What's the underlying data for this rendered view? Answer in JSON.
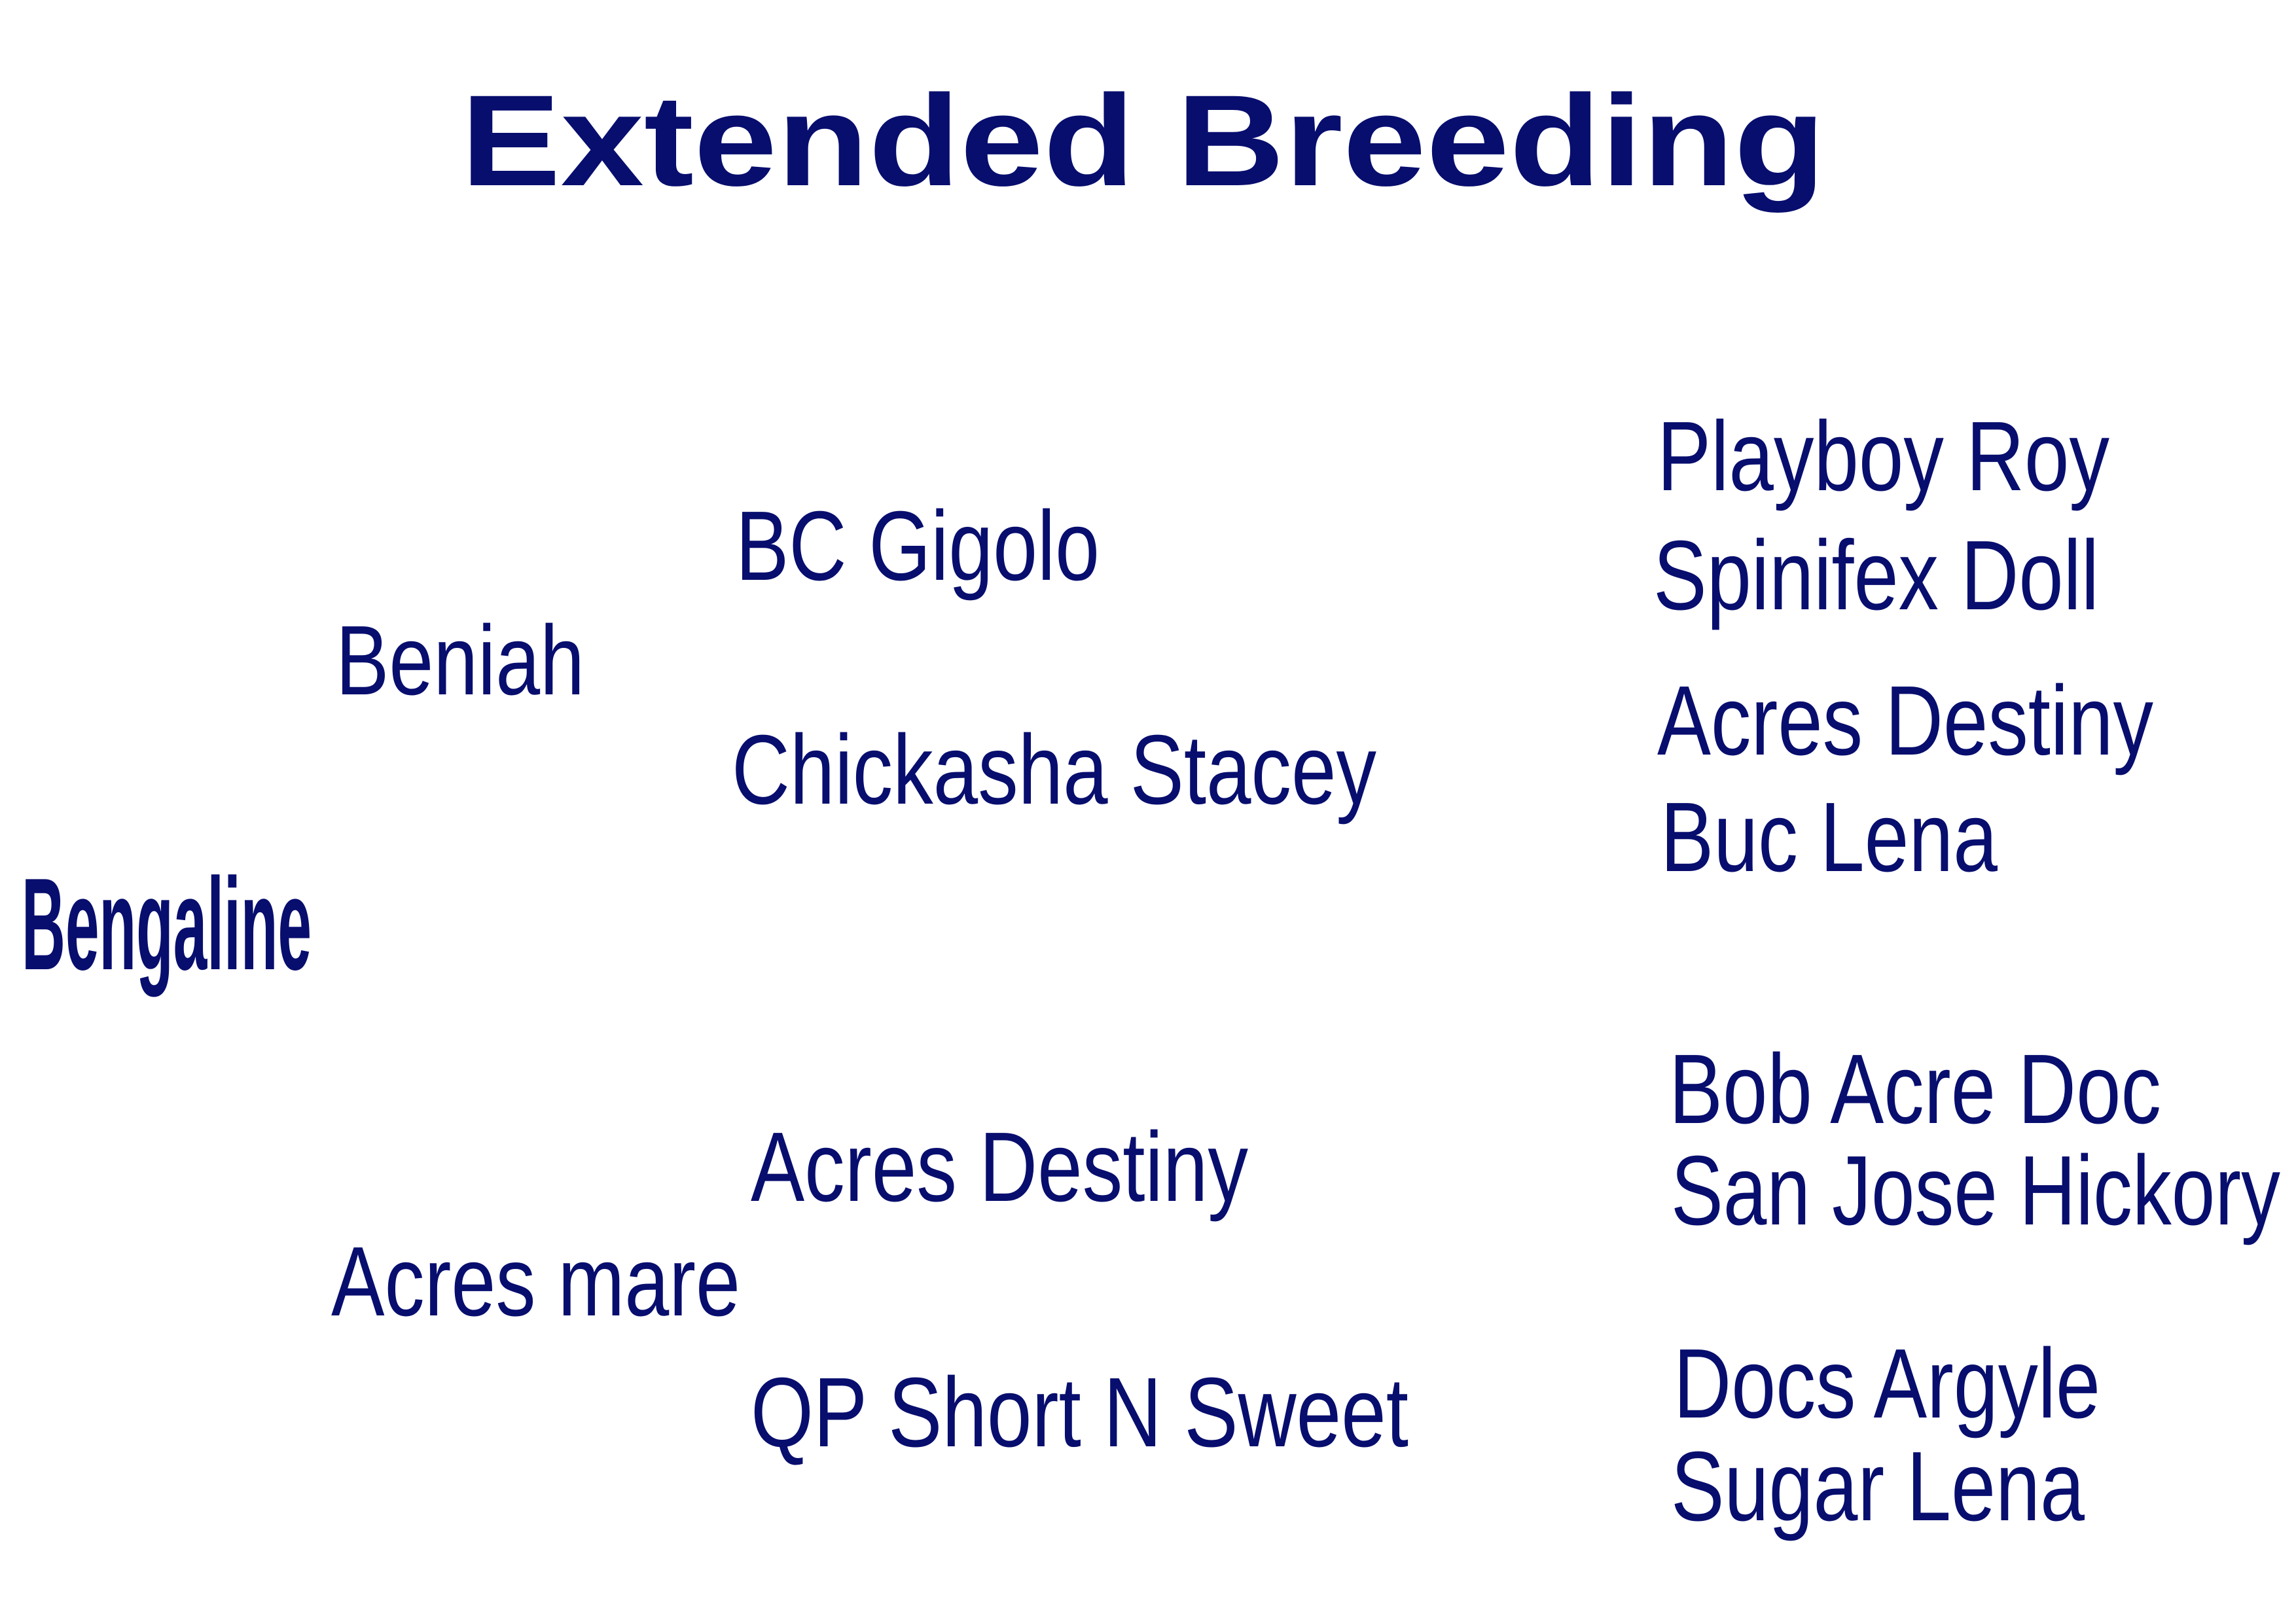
{
  "title": "Extended Breeding",
  "subject": "Bengaline",
  "parents": {
    "sire": "Beniah",
    "dam": "Acres mare"
  },
  "grandparents": {
    "sire_sire": "BC Gigolo",
    "sire_dam": "Chickasha Stacey",
    "dam_sire": "Acres Destiny",
    "dam_dam": "QP Short N Sweet"
  },
  "great_grandparents": [
    "Playboy Roy",
    "Spinifex Doll",
    "Acres Destiny",
    "Buc Lena",
    "Bob Acre Doc",
    "San Jose Hickory",
    "Docs Argyle",
    "Sugar Lena"
  ],
  "colors": {
    "text": "#080e6e",
    "background": "#ffffff"
  }
}
